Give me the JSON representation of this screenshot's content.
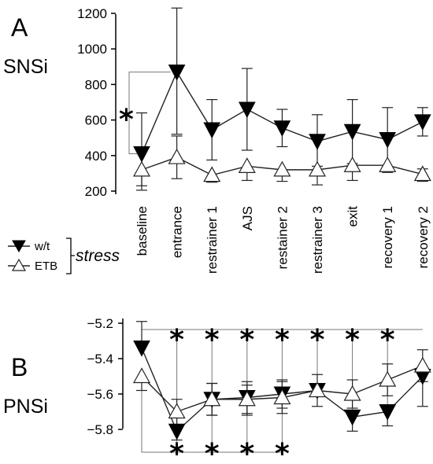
{
  "chart_data": [
    {
      "panel": "A",
      "title": "SNSi",
      "type": "line",
      "categories": [
        "baseline",
        "entrance",
        "restrainer 1",
        "AJS",
        "restainer 2",
        "restrainer 3",
        "exit",
        "recovery 1",
        "recovery 2"
      ],
      "ylim": [
        200,
        1200
      ],
      "yticks": [
        "200",
        "400",
        "600",
        "800",
        "1000",
        "1200"
      ],
      "series": [
        {
          "name": "w/t",
          "marker": "filled-down-triangle",
          "values": [
            410,
            870,
            545,
            660,
            555,
            480,
            535,
            490,
            590
          ],
          "err_up": [
            230,
            360,
            170,
            230,
            105,
            150,
            180,
            180,
            80
          ],
          "err_down": [
            180,
            350,
            170,
            230,
            105,
            140,
            180,
            180,
            80
          ]
        },
        {
          "name": "ETB",
          "marker": "open-up-triangle",
          "values": [
            320,
            390,
            290,
            340,
            320,
            320,
            345,
            345,
            295
          ],
          "err_up": [
            0,
            120,
            0,
            0,
            0,
            0,
            0,
            0,
            30
          ],
          "err_down": [
            115,
            120,
            40,
            80,
            65,
            85,
            85,
            40,
            40
          ]
        }
      ],
      "significance": [
        {
          "label": "*",
          "between": [
            "baseline",
            "entrance"
          ]
        }
      ]
    },
    {
      "panel": "B",
      "title": "PNSi",
      "type": "line",
      "categories": [
        "baseline",
        "entrance",
        "restrainer 1",
        "AJS",
        "restainer 2",
        "restrainer 3",
        "exit",
        "recovery 1",
        "recovery 2"
      ],
      "ylim": [
        -5.82,
        -5.18
      ],
      "yticks": [
        "−5.2",
        "−5.4",
        "−5.6",
        "−5.8"
      ],
      "series": [
        {
          "name": "w/t",
          "marker": "filled-down-triangle",
          "values": [
            -5.34,
            -5.81,
            -5.63,
            -5.62,
            -5.6,
            -5.58,
            -5.73,
            -5.7,
            -5.5
          ],
          "err_up": [
            0.15,
            0,
            0.09,
            0.09,
            0.08,
            0.09,
            0,
            0,
            0
          ],
          "err_down": [
            0,
            0.05,
            0.09,
            0.09,
            0.08,
            0.09,
            0.08,
            0.08,
            0.17
          ]
        },
        {
          "name": "ETB",
          "marker": "open-up-triangle",
          "values": [
            -5.5,
            -5.7,
            -5.63,
            -5.63,
            -5.62,
            -5.58,
            -5.6,
            -5.52,
            -5.44
          ],
          "err_up": [
            0,
            0.07,
            0.09,
            0.08,
            0.09,
            0,
            0.08,
            0.09,
            0.09
          ],
          "err_down": [
            0.08,
            0.08,
            0.09,
            0.09,
            0.09,
            0,
            0.08,
            0.09,
            0.09
          ]
        }
      ],
      "significance_top": {
        "label": "*",
        "reference": "baseline",
        "categories": [
          "entrance",
          "restrainer 1",
          "AJS",
          "restainer 2",
          "restrainer 3",
          "exit",
          "recovery 1"
        ]
      },
      "significance_bottom": {
        "label": "*",
        "reference": "baseline",
        "categories": [
          "entrance",
          "restrainer 1",
          "AJS",
          "restainer 2"
        ]
      }
    }
  ],
  "legend": {
    "entries": [
      {
        "label": "w/t",
        "marker": "filled-down-triangle"
      },
      {
        "label": "ETB",
        "marker": "open-up-triangle"
      }
    ],
    "group_label": "stress"
  },
  "colors": {
    "wt_fill": "#000000",
    "etb_fill": "#ffffff",
    "line": "#222222",
    "bracket": "#777777"
  }
}
